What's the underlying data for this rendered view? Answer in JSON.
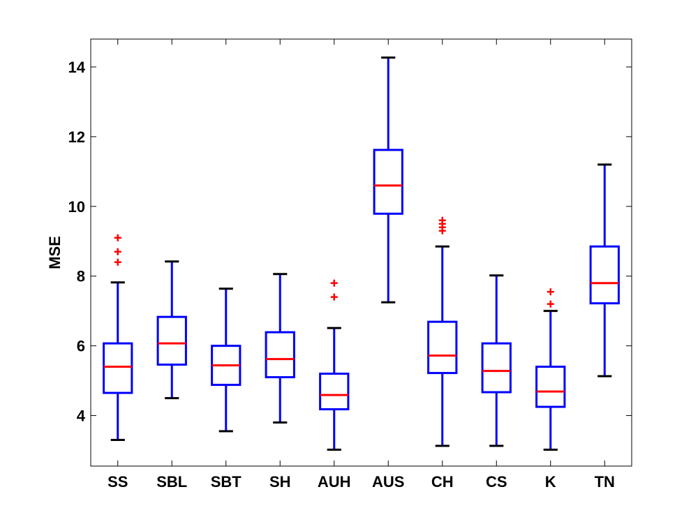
{
  "chart_data": {
    "type": "box",
    "title": "",
    "xlabel": "",
    "ylabel": "MSE",
    "ylim": [
      2.55,
      14.8
    ],
    "yticks": [
      4,
      6,
      8,
      10,
      12,
      14
    ],
    "grid": false,
    "colors": {
      "box": "#0000ff",
      "median": "#ff0000",
      "outlier": "#ff0000",
      "whisker_cap": "#000000",
      "axis": "#000000",
      "background": "#ffffff"
    },
    "categories": [
      "SS",
      "SBL",
      "SBT",
      "SH",
      "AUH",
      "AUS",
      "CH",
      "CS",
      "K",
      "TN"
    ],
    "boxes": [
      {
        "label": "SS",
        "whisker_low": 3.3,
        "q1": 4.65,
        "median": 5.4,
        "q3": 6.07,
        "whisker_high": 7.82,
        "outliers": [
          8.4,
          8.7,
          9.1
        ]
      },
      {
        "label": "SBL",
        "whisker_low": 4.5,
        "q1": 5.46,
        "median": 6.07,
        "q3": 6.83,
        "whisker_high": 8.42,
        "outliers": []
      },
      {
        "label": "SBT",
        "whisker_low": 3.55,
        "q1": 4.88,
        "median": 5.44,
        "q3": 6.0,
        "whisker_high": 7.64,
        "outliers": []
      },
      {
        "label": "SH",
        "whisker_low": 3.8,
        "q1": 5.1,
        "median": 5.62,
        "q3": 6.39,
        "whisker_high": 8.06,
        "outliers": []
      },
      {
        "label": "AUH",
        "whisker_low": 3.02,
        "q1": 4.18,
        "median": 4.59,
        "q3": 5.2,
        "whisker_high": 6.51,
        "outliers": [
          7.4,
          7.8
        ]
      },
      {
        "label": "AUS",
        "whisker_low": 7.25,
        "q1": 9.79,
        "median": 10.6,
        "q3": 11.62,
        "whisker_high": 14.27,
        "outliers": []
      },
      {
        "label": "CH",
        "whisker_low": 3.13,
        "q1": 5.22,
        "median": 5.72,
        "q3": 6.69,
        "whisker_high": 8.85,
        "outliers": [
          9.3,
          9.4,
          9.5,
          9.6
        ]
      },
      {
        "label": "CS",
        "whisker_low": 3.13,
        "q1": 4.67,
        "median": 5.28,
        "q3": 6.07,
        "whisker_high": 8.02,
        "outliers": []
      },
      {
        "label": "K",
        "whisker_low": 3.02,
        "q1": 4.25,
        "median": 4.69,
        "q3": 5.4,
        "whisker_high": 7.0,
        "outliers": [
          7.2,
          7.55
        ]
      },
      {
        "label": "TN",
        "whisker_low": 5.13,
        "q1": 7.22,
        "median": 7.8,
        "q3": 8.85,
        "whisker_high": 11.2,
        "outliers": []
      }
    ]
  }
}
